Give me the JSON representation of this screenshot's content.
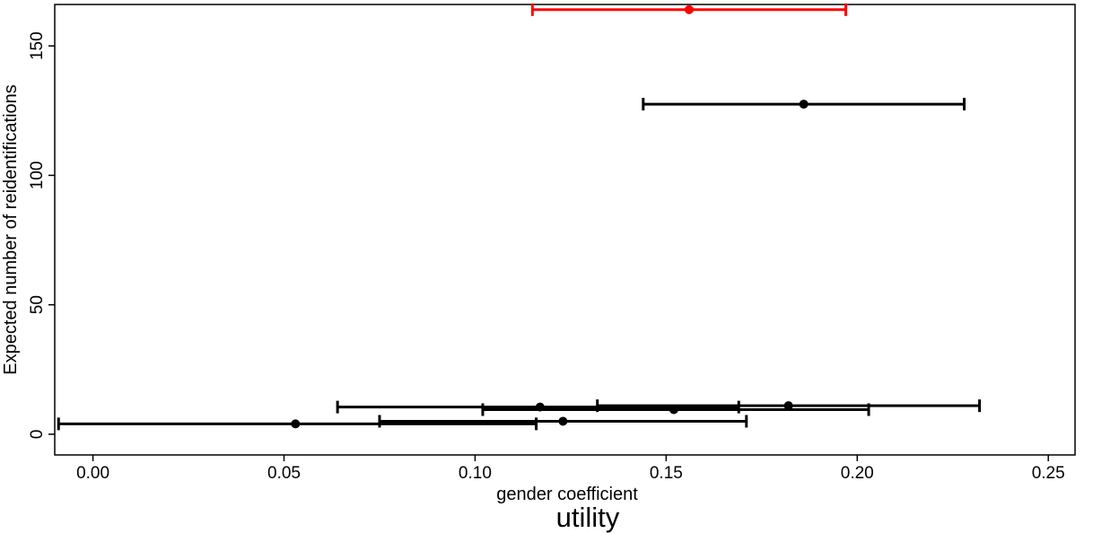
{
  "chart_data": {
    "type": "scatter",
    "title": "",
    "subtitle": "utility",
    "xlabel": "gender coefficient",
    "ylabel": "Expected number of reidentifications",
    "xlim": [
      -0.01,
      0.257
    ],
    "ylim": [
      -8,
      166
    ],
    "xticks": [
      0.0,
      0.05,
      0.1,
      0.15,
      0.2,
      0.25
    ],
    "xtick_labels": [
      "0.00",
      "0.05",
      "0.10",
      "0.15",
      "0.20",
      "0.25"
    ],
    "yticks": [
      0,
      50,
      100,
      150
    ],
    "ytick_labels": [
      "0",
      "50",
      "100",
      "150"
    ],
    "grid": false,
    "colors": {
      "highlight": "#ff0000",
      "default": "#000000"
    },
    "points": [
      {
        "x": 0.156,
        "y": 164,
        "xmin": 0.115,
        "xmax": 0.197,
        "highlight": true
      },
      {
        "x": 0.186,
        "y": 127.5,
        "xmin": 0.144,
        "xmax": 0.228,
        "highlight": false
      },
      {
        "x": 0.182,
        "y": 11,
        "xmin": 0.132,
        "xmax": 0.232,
        "highlight": false
      },
      {
        "x": 0.117,
        "y": 10.5,
        "xmin": 0.064,
        "xmax": 0.169,
        "highlight": false
      },
      {
        "x": 0.152,
        "y": 9.5,
        "xmin": 0.102,
        "xmax": 0.203,
        "highlight": false
      },
      {
        "x": 0.123,
        "y": 5,
        "xmin": 0.075,
        "xmax": 0.171,
        "highlight": false
      },
      {
        "x": 0.053,
        "y": 4,
        "xmin": -0.009,
        "xmax": 0.116,
        "highlight": false
      }
    ]
  }
}
